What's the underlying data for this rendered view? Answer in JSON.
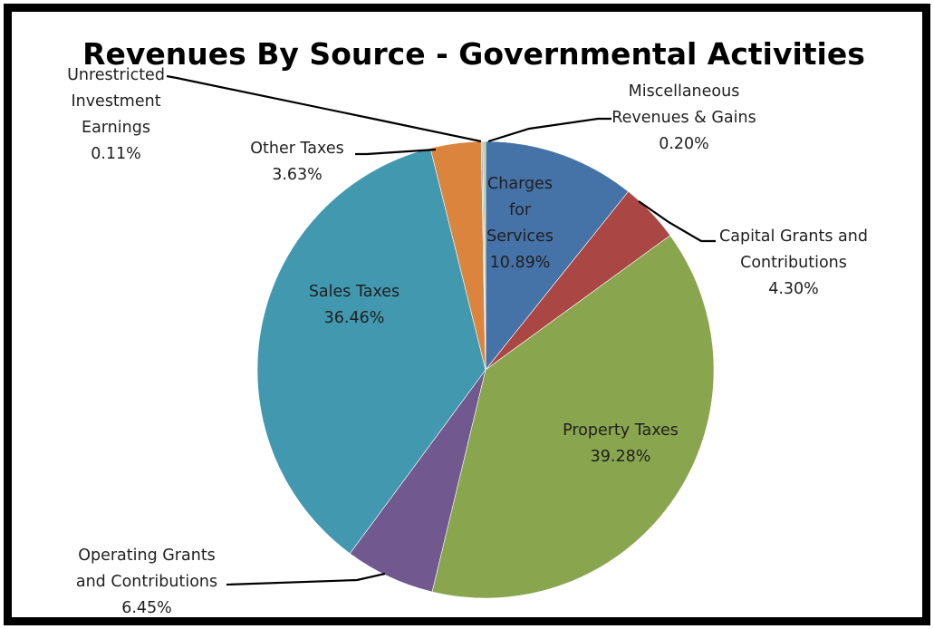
{
  "chart_data": {
    "type": "pie",
    "title": "Revenues By Source - Governmental Activities",
    "start_angle_deg": 0,
    "direction": "clockwise",
    "slices": [
      {
        "name": "Charges for Services",
        "label_lines": [
          "Charges",
          "for",
          "Services",
          "10.89%"
        ],
        "value": 10.89,
        "color": "#4572A7",
        "label_style": "inside"
      },
      {
        "name": "Capital Grants and Contributions",
        "label_lines": [
          "Capital Grants and",
          "Contributions",
          "4.30%"
        ],
        "value": 4.3,
        "color": "#AA4643",
        "label_style": "outside"
      },
      {
        "name": "Property Taxes",
        "label_lines": [
          "Property Taxes",
          "39.28%"
        ],
        "value": 39.28,
        "color": "#89A54E",
        "label_style": "inside"
      },
      {
        "name": "Operating Grants and Contributions",
        "label_lines": [
          "Operating Grants",
          "and Contributions",
          "6.45%"
        ],
        "value": 6.45,
        "color": "#71588F",
        "label_style": "outside"
      },
      {
        "name": "Sales Taxes",
        "label_lines": [
          "Sales Taxes",
          "36.46%"
        ],
        "value": 36.46,
        "color": "#4198AF",
        "label_style": "inside"
      },
      {
        "name": "Other Taxes",
        "label_lines": [
          "Other Taxes",
          "3.63%"
        ],
        "value": 3.63,
        "color": "#DB843D",
        "label_style": "outside"
      },
      {
        "name": "Unrestricted Investment Earnings",
        "label_lines": [
          "Unrestricted",
          "Investment",
          "Earnings",
          "0.11%"
        ],
        "value": 0.11,
        "color": "#93A9CF",
        "label_style": "outside"
      },
      {
        "name": "Miscellaneous Revenues & Gains",
        "label_lines": [
          "Miscellaneous",
          "Revenues & Gains",
          "0.20%"
        ],
        "value": 0.2,
        "color": "#B9CD96",
        "label_style": "outside"
      }
    ]
  }
}
